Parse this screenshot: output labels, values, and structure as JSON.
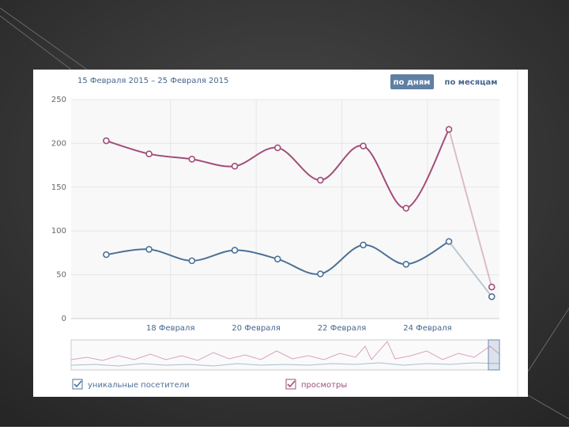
{
  "chart_data": {
    "type": "line",
    "title": "15 Февраля 2015 – 25 Февраля 2015",
    "buttons": [
      "по дням",
      "по месяцам"
    ],
    "x": [
      16.5,
      17.5,
      18.5,
      19.5,
      20.5,
      21.5,
      22.5,
      23.5,
      24.5,
      25.5
    ],
    "xlim": [
      15.68,
      25.68
    ],
    "xticks": [
      {
        "value": 18,
        "label": "18 Февраля"
      },
      {
        "value": 20,
        "label": "20 Февраля"
      },
      {
        "value": 22,
        "label": "22 Февраля"
      },
      {
        "value": 24,
        "label": "24 Февраля"
      }
    ],
    "ylim": [
      0,
      250
    ],
    "yticks": [
      0,
      50,
      100,
      150,
      200,
      250
    ],
    "grid": true,
    "series": [
      {
        "name": "уникальные посетители",
        "color": "#4d7198",
        "values": [
          73,
          79,
          66,
          78,
          68,
          51,
          84,
          62,
          88,
          25
        ]
      },
      {
        "name": "просмотры",
        "color": "#a24d78",
        "values": [
          203,
          188,
          182,
          174,
          195,
          158,
          197,
          126,
          216,
          36
        ]
      }
    ]
  }
}
